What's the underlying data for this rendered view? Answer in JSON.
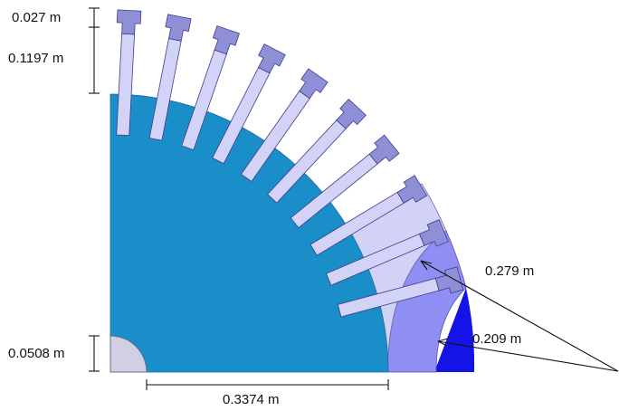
{
  "colors": {
    "rotor_core": "#1a8ec9",
    "slot_conductor": "#d3d3f7",
    "tooth_tip": "#8f8fd8",
    "outer_light": "#d2d2f6",
    "outer_mid": "#8f8ff3",
    "outer_dark": "#1414e6",
    "shaft": "#d0cfe4",
    "outline": "#3c3c8c",
    "annotation": "#111111"
  },
  "dimensions": {
    "tooth_tip_height": "0.027 m",
    "slot_height": "0.1197 m",
    "shaft_radius": "0.0508 m",
    "rotor_radius": "0.3374 m",
    "outer_radius_large": "0.279 m",
    "outer_radius_small": "0.209 m"
  }
}
